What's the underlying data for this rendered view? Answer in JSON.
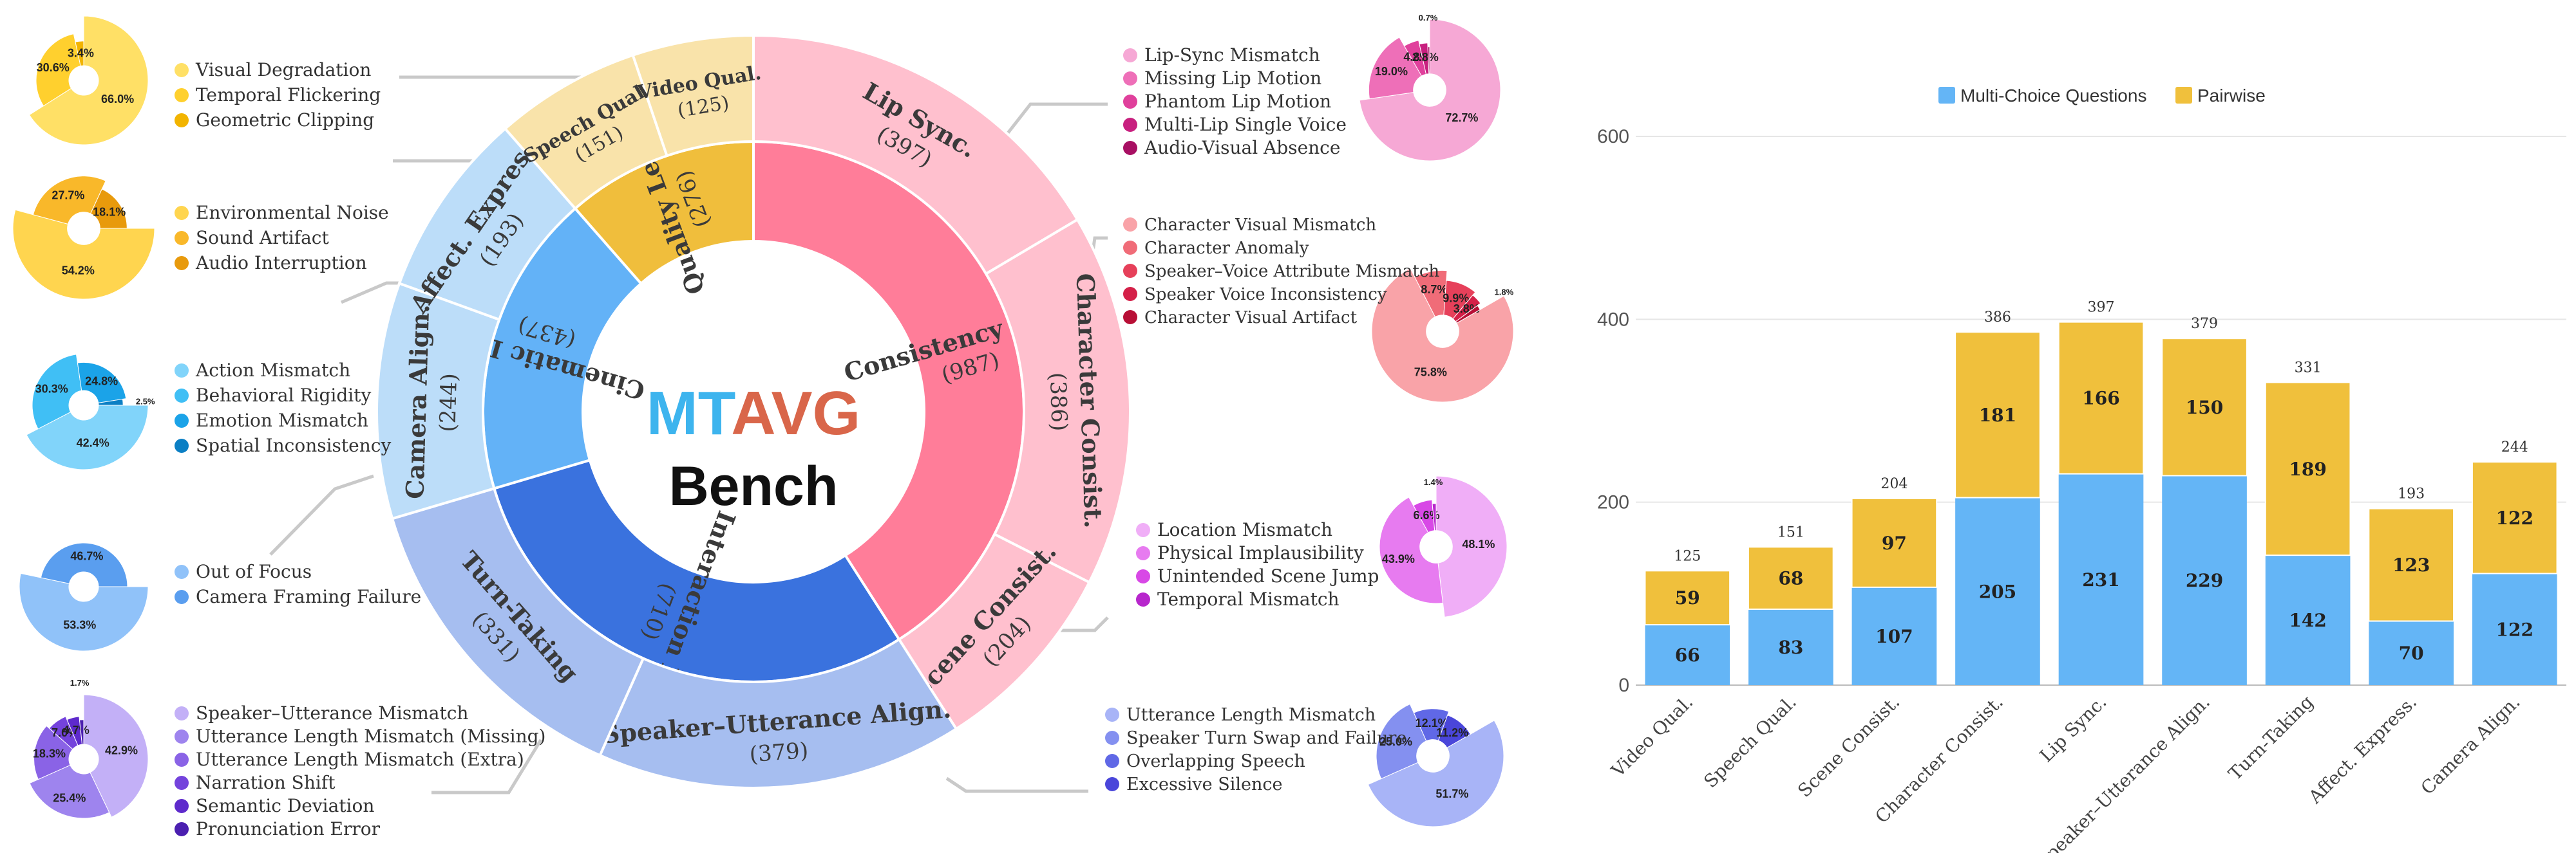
{
  "logo": {
    "line1a": "MT",
    "line1b": "AVG",
    "line2": "Bench"
  },
  "colors": {
    "consistency": "#FF7D99",
    "lipsync_ring": "#FFC0CE",
    "quality": "#F0BE3C",
    "quality_ring": "#F9E3AA",
    "cinematic": "#63B2F7",
    "cinematic_ring": "#BCDDF9",
    "interaction": "#3A72DE",
    "interaction_ring": "#A6BEF0",
    "mcq": "#64B5F6",
    "pairwise": "#F0C03C",
    "callout": "#c9c9c9",
    "text": "#333333"
  },
  "sunburst": {
    "inner": [
      {
        "key": "consistency",
        "label": "Consistency Level",
        "count": "(987)",
        "value": 987
      },
      {
        "key": "interaction",
        "label": "Interaction Level",
        "count": "(710)",
        "value": 710
      },
      {
        "key": "cinematic",
        "label": "Cinematic Level",
        "count": "(437)",
        "value": 437
      },
      {
        "key": "quality",
        "label": "Quality Level",
        "count": "(276)",
        "value": 276
      }
    ],
    "outer": [
      {
        "key": "lip",
        "label": "Lip Sync.",
        "count": "(397)",
        "value": 397,
        "group": "consistency"
      },
      {
        "key": "char",
        "label": "Character Consist.",
        "count": "(386)",
        "value": 386,
        "group": "consistency"
      },
      {
        "key": "scene",
        "label": "Scene Consist.",
        "count": "(204)",
        "value": 204,
        "group": "consistency"
      },
      {
        "key": "spk",
        "label": "Speaker–Utterance Align.",
        "count": "(379)",
        "value": 379,
        "group": "interaction"
      },
      {
        "key": "turn",
        "label": "Turn-Taking",
        "count": "(331)",
        "value": 331,
        "group": "interaction"
      },
      {
        "key": "cam",
        "label": "Camera Align.",
        "count": "(244)",
        "value": 244,
        "group": "cinematic"
      },
      {
        "key": "affect",
        "label": "Affect. Express.",
        "count": "(193)",
        "value": 193,
        "group": "cinematic"
      },
      {
        "key": "speech",
        "label": "Speech Qual.",
        "count": "(151)",
        "value": 151,
        "group": "quality"
      },
      {
        "key": "video",
        "label": "Video Qual.",
        "count": "(125)",
        "value": 125,
        "group": "quality"
      }
    ]
  },
  "subcategories": [
    {
      "key": "video",
      "legend": [
        "Visual Degradation",
        "Temporal Flickering",
        "Geometric Clipping"
      ],
      "colors": [
        "#FFE066",
        "#FFD02E",
        "#F2B400"
      ],
      "values": [
        66.0,
        30.6,
        3.4
      ],
      "labels": [
        "66.0%",
        "30.6%",
        "3.4%"
      ]
    },
    {
      "key": "speech",
      "legend": [
        "Environmental Noise",
        "Sound Artifact",
        "Audio Interruption"
      ],
      "colors": [
        "#FFD54F",
        "#F9B82A",
        "#E89A0C"
      ],
      "values": [
        54.2,
        27.7,
        18.1
      ],
      "labels": [
        "54.2%",
        "27.7%",
        "18.1%"
      ]
    },
    {
      "key": "affect",
      "legend": [
        "Action Mismatch",
        "Behavioral Rigidity",
        "Emotion Mismatch",
        "Spatial Inconsistency"
      ],
      "colors": [
        "#81D4FA",
        "#40BFF5",
        "#1BA3E8",
        "#0B7FC4"
      ],
      "values": [
        42.4,
        30.3,
        24.8,
        2.5
      ],
      "labels": [
        "42.4%",
        "30.3%",
        "24.8%",
        "2.5%"
      ]
    },
    {
      "key": "cam",
      "legend": [
        "Out of Focus",
        "Camera Framing Failure"
      ],
      "colors": [
        "#90C2F9",
        "#5A9EEF"
      ],
      "values": [
        53.3,
        46.7
      ],
      "labels": [
        "53.3%",
        "46.7%"
      ]
    },
    {
      "key": "turn",
      "legend": [
        "Speaker–Utterance Mismatch",
        "Utterance Length Mismatch (Missing)",
        "Utterance Length Mismatch (Extra)",
        "Narration Shift",
        "Semantic Deviation",
        "Pronunciation Error"
      ],
      "colors": [
        "#C3B0F7",
        "#9E84EE",
        "#8A63E6",
        "#7443DC",
        "#5E2ACC",
        "#4B1FB0"
      ],
      "values": [
        42.9,
        25.4,
        18.3,
        7.0,
        4.7,
        1.7
      ],
      "labels": [
        "42.9%",
        "25.4%",
        "18.3%",
        "7.0%",
        "4.7%",
        "1.7%"
      ]
    },
    {
      "key": "lip",
      "legend": [
        "Lip-Sync Mismatch",
        "Missing Lip Motion",
        "Phantom Lip Motion",
        "Multi-Lip Single Voice",
        "Audio-Visual Absence"
      ],
      "colors": [
        "#F6A8D5",
        "#EE6FB8",
        "#E0409C",
        "#C8207F",
        "#A80F63"
      ],
      "values": [
        72.7,
        19.0,
        4.8,
        2.8,
        0.7
      ],
      "labels": [
        "72.7%",
        "19.0%",
        "4.8%",
        "2.8%",
        "0.7%"
      ]
    },
    {
      "key": "char",
      "legend": [
        "Character Visual Mismatch",
        "Character Anomaly",
        "Speaker–Voice Attribute Mismatch",
        "Speaker Voice Inconsistency",
        "Character Visual Artifact"
      ],
      "colors": [
        "#F9A3A8",
        "#F06C78",
        "#E6405A",
        "#D42048",
        "#B80F36"
      ],
      "values": [
        75.8,
        8.7,
        9.9,
        3.8,
        1.8
      ],
      "labels": [
        "75.8%",
        "8.7%",
        "9.9%",
        "3.8%",
        "1.8%"
      ]
    },
    {
      "key": "scene",
      "legend": [
        "Location Mismatch",
        "Physical Implausibility",
        "Unintended Scene Jump",
        "Temporal Mismatch"
      ],
      "colors": [
        "#F0AEF7",
        "#E77BF0",
        "#D848E6",
        "#B726CC"
      ],
      "values": [
        48.1,
        43.9,
        6.6,
        1.4
      ],
      "labels": [
        "48.1%",
        "43.9%",
        "6.6%",
        "1.4%"
      ]
    },
    {
      "key": "spk",
      "legend": [
        "Utterance Length Mismatch",
        "Speaker Turn Swap and Failure",
        "Overlapping Speech",
        "Excessive Silence"
      ],
      "colors": [
        "#A8B4F7",
        "#8490F0",
        "#6068E6",
        "#4A46DA"
      ],
      "values": [
        51.7,
        25.0,
        12.1,
        11.2
      ],
      "labels": [
        "51.7%",
        "25.0%",
        "12.1%",
        "11.2%"
      ]
    }
  ],
  "chart_data": {
    "type": "bar",
    "stacked": true,
    "categories": [
      "Video Qual.",
      "Speech Qual.",
      "Scene Consist.",
      "Character Consist.",
      "Lip Sync.",
      "Speaker–Utterance Align.",
      "Turn-Taking",
      "Affect. Express.",
      "Camera Align."
    ],
    "series": [
      {
        "name": "Multi-Choice Questions",
        "values": [
          66,
          83,
          107,
          205,
          231,
          229,
          142,
          70,
          122
        ]
      },
      {
        "name": "Pairwise",
        "values": [
          59,
          68,
          97,
          181,
          166,
          150,
          189,
          123,
          122
        ]
      }
    ],
    "totals": [
      125,
      151,
      204,
      386,
      397,
      379,
      331,
      193,
      244
    ],
    "ylim": [
      0,
      600
    ],
    "yticks": [
      "0",
      "200",
      "400",
      "600"
    ],
    "legend_position": "top",
    "grid": true
  }
}
